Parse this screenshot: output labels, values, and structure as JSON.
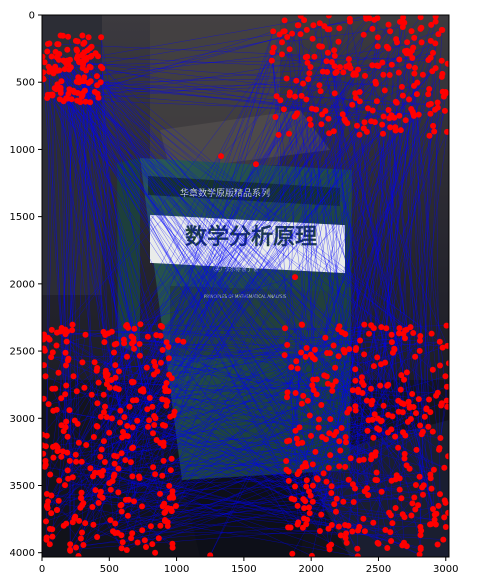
{
  "figure": {
    "book": {
      "series_band": "华章数学原版精品系列",
      "title_cn": "数学分析原理",
      "author_line": "（美）沃尔特·鲁丁 著",
      "title_en": "PRINCIPLES OF MATHEMATICAL ANALYSIS"
    },
    "colors": {
      "match_line": "#0000ff",
      "keypoint": "#ff0000",
      "book_cover": "#1f4a45",
      "background_dark": "#1a1c24"
    }
  },
  "chart_data": {
    "type": "scatter",
    "title": "",
    "xlabel": "",
    "ylabel": "",
    "xlim": [
      0,
      3024
    ],
    "ylim": [
      4032,
      0
    ],
    "x_ticks": [
      "0",
      "500",
      "1000",
      "1500",
      "2000",
      "2500",
      "3000"
    ],
    "y_ticks": [
      "0",
      "500",
      "1000",
      "1500",
      "2000",
      "2500",
      "3000",
      "3500",
      "4000"
    ],
    "series": [
      {
        "marker": "red-dot",
        "clusters": [
          {
            "region": "top-left",
            "x": [
              0,
              450
            ],
            "y": [
              150,
              650
            ],
            "count": 120
          },
          {
            "region": "top-right",
            "x": [
              1700,
              3024
            ],
            "y": [
              0,
              900
            ],
            "count": 220
          },
          {
            "region": "bottom-left",
            "x": [
              0,
              1000
            ],
            "y": [
              2300,
              4032
            ],
            "count": 320
          },
          {
            "region": "bottom-right",
            "x": [
              1800,
              3024
            ],
            "y": [
              2300,
              4032
            ],
            "count": 340
          }
        ],
        "isolated_points": [
          [
            1330,
            1050
          ],
          [
            1590,
            1110
          ],
          [
            1880,
            1950
          ],
          [
            1010,
            2420
          ],
          [
            1050,
            2430
          ],
          [
            880,
            3800
          ],
          [
            1250,
            4020
          ]
        ]
      }
    ],
    "match_lines": {
      "count": 700
    }
  }
}
